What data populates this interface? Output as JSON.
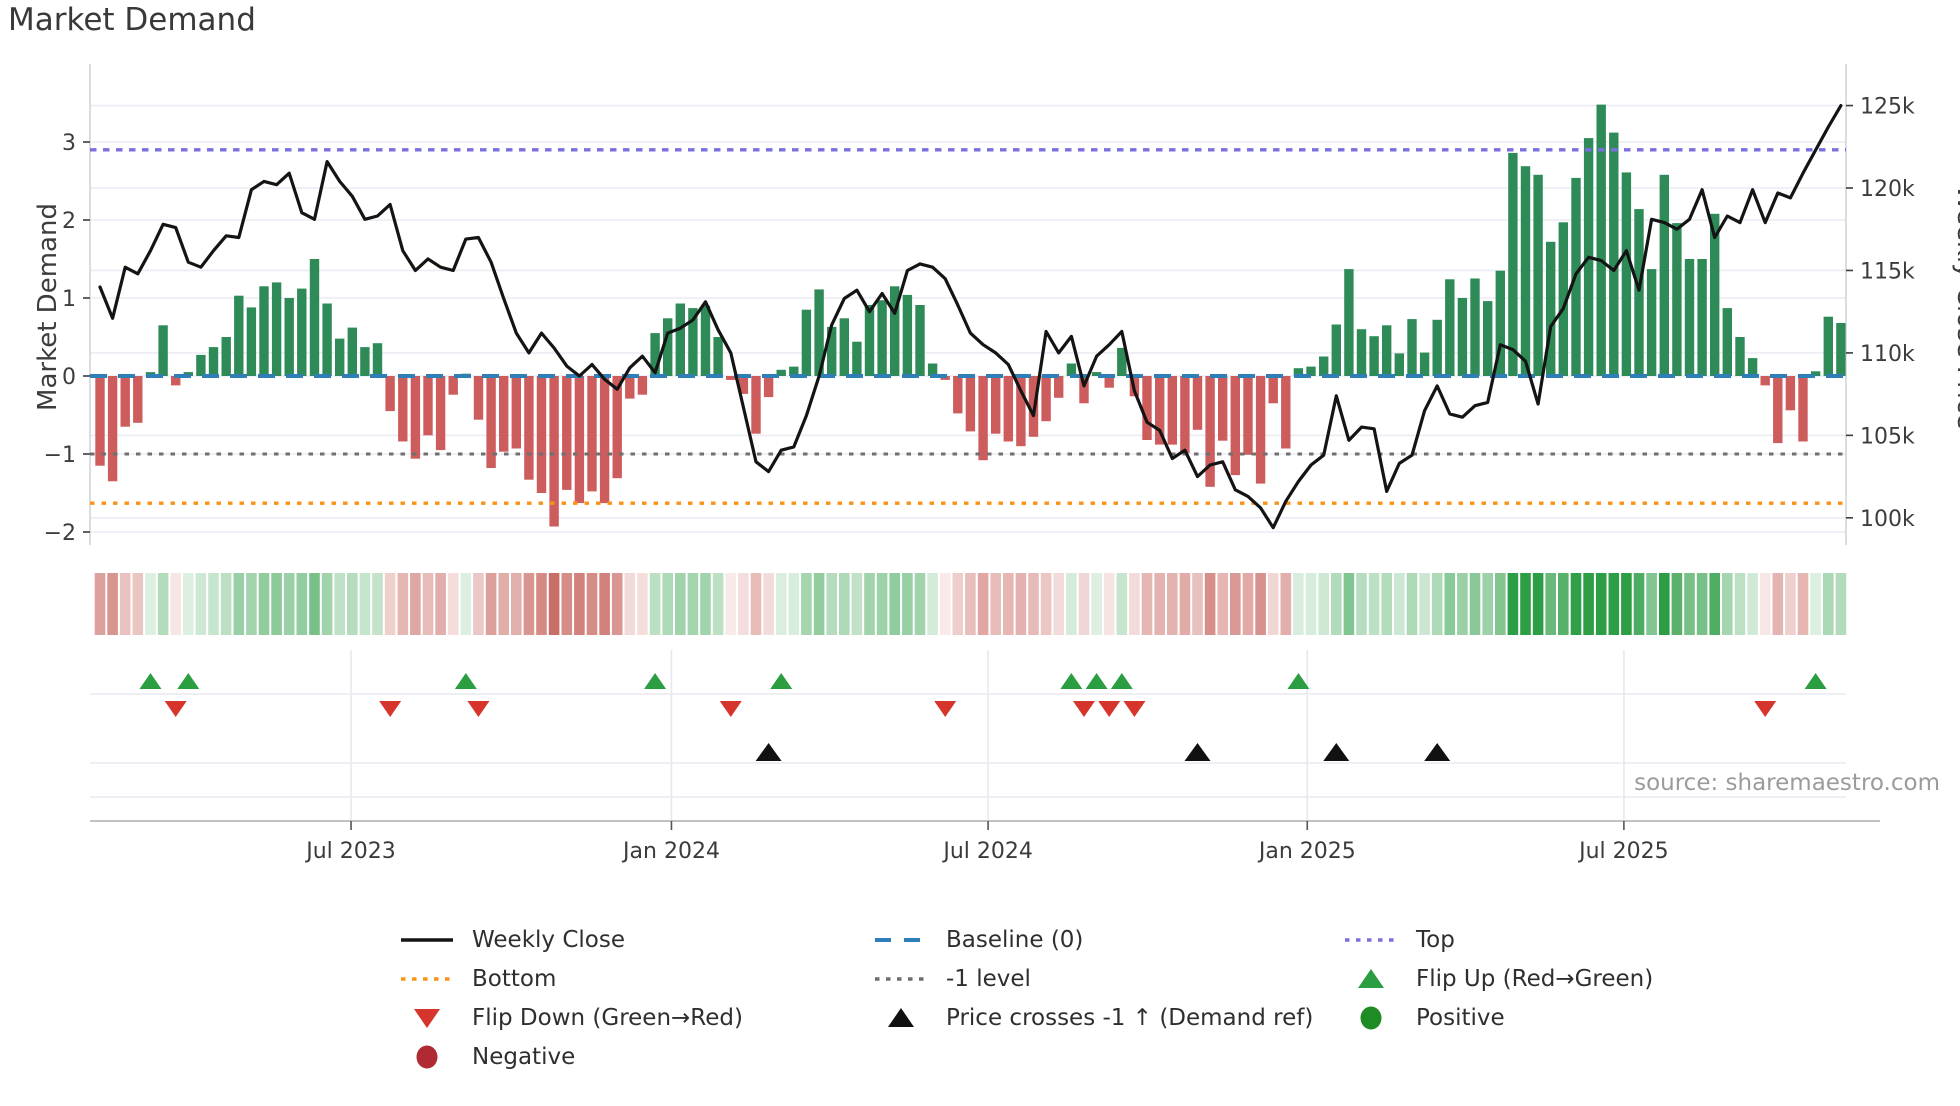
{
  "title": "Market Demand",
  "source": "source: sharemaestro.com",
  "axes": {
    "left_label": "Market Demand",
    "right_label": "Weekly Close Price",
    "left_ticks": [
      "3",
      "2",
      "1",
      "0",
      "−1",
      "−2"
    ],
    "left_tick_values": [
      3,
      2,
      1,
      0,
      -1,
      -2
    ],
    "right_ticks": [
      "125k",
      "120k",
      "115k",
      "110k",
      "105k",
      "100k"
    ],
    "right_tick_values": [
      125,
      120,
      115,
      110,
      105,
      100
    ],
    "x_tick_labels": [
      "Jul 2023",
      "Jan 2024",
      "Jul 2024",
      "Jan 2025",
      "Jul 2025"
    ]
  },
  "colors": {
    "bar_positive": "#2e8b57",
    "bar_negative": "#cd5c5c",
    "price_line": "#141414",
    "baseline": "#2e7eb8",
    "top_line": "#7b6fe0",
    "minus_one_line": "#6f6f6f",
    "bottom_line": "#fa9315",
    "flip_up": "#2b9e41",
    "flip_down": "#d6352c",
    "price_cross": "#111111",
    "positive_dot": "#1f8b24",
    "negative_dot": "#b02a33",
    "heat_green_base": "#2e9e46",
    "heat_red_base": "#c05048"
  },
  "legend": {
    "items": [
      {
        "label": "Weekly Close",
        "kind": "line",
        "color": "#141414"
      },
      {
        "label": "Baseline (0)",
        "kind": "dashes",
        "color": "#2e7eb8"
      },
      {
        "label": "Top",
        "kind": "dots",
        "color": "#7b6fe0"
      },
      {
        "label": "Bottom",
        "kind": "dots",
        "color": "#fa9315"
      },
      {
        "label": "-1 level",
        "kind": "dots",
        "color": "#6f6f6f"
      },
      {
        "label": "Flip Up (Red→Green)",
        "kind": "tri-up",
        "color": "#2b9e41"
      },
      {
        "label": "Flip Down (Green→Red)",
        "kind": "tri-down",
        "color": "#d6352c"
      },
      {
        "label": "Price crosses -1 ↑ (Demand ref)",
        "kind": "tri-up",
        "color": "#111111"
      },
      {
        "label": "Positive",
        "kind": "circle",
        "color": "#1f8b24"
      },
      {
        "label": "Negative",
        "kind": "circle",
        "color": "#b02a33"
      }
    ]
  },
  "chart_data": {
    "type": "bar",
    "title": "Market Demand",
    "x_unit": "week_index",
    "weeks": 139,
    "x_tick_labels": [
      "Jul 2023",
      "Jan 2024",
      "Jul 2024",
      "Jan 2025",
      "Jul 2025"
    ],
    "x_tick_weeks": [
      19.9,
      45.3,
      70.4,
      95.7,
      120.8
    ],
    "left_axis": {
      "label": "Market Demand",
      "range": [
        -2.17,
        4.0
      ],
      "ticks": [
        3,
        2,
        1,
        0,
        -1,
        -2
      ],
      "grid": true
    },
    "right_axis": {
      "label": "Weekly Close Price",
      "range_k": [
        98.3,
        127.5
      ],
      "ticks_k": [
        125,
        120,
        115,
        110,
        105,
        100
      ],
      "grid": true
    },
    "reference_lines": {
      "baseline": 0,
      "top": 2.9,
      "minus_one_level": -1,
      "bottom": -1.63
    },
    "legend_position": "bottom",
    "series": [
      {
        "name": "Market Demand",
        "type": "bar",
        "axis": "left",
        "values": [
          -1.15,
          -1.35,
          -0.65,
          -0.6,
          0.05,
          0.65,
          -0.12,
          0.05,
          0.27,
          0.37,
          0.5,
          1.03,
          0.88,
          1.15,
          1.2,
          1.0,
          1.12,
          1.5,
          0.93,
          0.48,
          0.62,
          0.37,
          0.42,
          -0.45,
          -0.84,
          -1.06,
          -0.76,
          -0.95,
          -0.24,
          0.03,
          -0.56,
          -1.18,
          -0.97,
          -0.93,
          -1.33,
          -1.5,
          -1.93,
          -1.46,
          -1.63,
          -1.48,
          -1.63,
          -1.31,
          -0.29,
          -0.24,
          0.55,
          0.74,
          0.93,
          0.87,
          0.9,
          0.5,
          -0.05,
          -0.23,
          -0.74,
          -0.27,
          0.08,
          0.12,
          0.85,
          1.11,
          0.63,
          0.74,
          0.44,
          0.91,
          0.97,
          1.15,
          1.04,
          0.91,
          0.16,
          -0.05,
          -0.48,
          -0.71,
          -1.08,
          -0.74,
          -0.84,
          -0.9,
          -0.78,
          -0.58,
          -0.28,
          0.16,
          -0.35,
          0.05,
          -0.15,
          0.36,
          -0.26,
          -0.82,
          -0.88,
          -0.88,
          -0.99,
          -0.69,
          -1.42,
          -0.83,
          -1.27,
          -1.01,
          -1.38,
          -0.35,
          -0.93,
          0.1,
          0.12,
          0.25,
          0.66,
          1.37,
          0.6,
          0.51,
          0.65,
          0.29,
          0.73,
          0.3,
          0.72,
          1.24,
          1.0,
          1.25,
          0.96,
          1.35,
          2.86,
          2.69,
          2.58,
          1.72,
          1.97,
          2.54,
          3.05,
          3.48,
          3.12,
          2.61,
          2.14,
          1.37,
          2.58,
          1.96,
          1.5,
          1.5,
          2.08,
          0.87,
          0.5,
          0.23,
          -0.12,
          -0.86,
          -0.44,
          -0.84,
          0.06,
          0.76,
          0.68
        ]
      },
      {
        "name": "Weekly Close",
        "type": "line",
        "axis": "right",
        "values_k": [
          114.0,
          112.1,
          115.2,
          114.8,
          116.2,
          117.8,
          117.6,
          115.5,
          115.2,
          116.2,
          117.1,
          117.0,
          119.9,
          120.4,
          120.2,
          120.9,
          118.5,
          118.1,
          121.6,
          120.4,
          119.5,
          118.1,
          118.3,
          119.0,
          116.2,
          115.0,
          115.7,
          115.2,
          115.0,
          116.9,
          117.0,
          115.5,
          113.3,
          111.2,
          110.0,
          111.2,
          110.3,
          109.2,
          108.6,
          109.3,
          108.4,
          107.8,
          109.1,
          109.8,
          108.8,
          111.2,
          111.5,
          112.0,
          113.1,
          111.4,
          110.0,
          106.7,
          103.4,
          102.8,
          104.1,
          104.3,
          106.2,
          108.6,
          111.7,
          113.3,
          113.8,
          112.5,
          113.6,
          112.4,
          115.0,
          115.4,
          115.2,
          114.5,
          112.9,
          111.2,
          110.5,
          110.0,
          109.3,
          107.7,
          106.2,
          111.3,
          110.0,
          111.0,
          108.0,
          109.8,
          110.5,
          111.3,
          107.7,
          105.8,
          105.3,
          103.6,
          104.1,
          102.5,
          103.2,
          103.4,
          101.7,
          101.3,
          100.6,
          99.4,
          101.0,
          102.2,
          103.2,
          103.8,
          107.4,
          104.7,
          105.5,
          105.4,
          101.6,
          103.3,
          103.8,
          106.5,
          108.0,
          106.3,
          106.1,
          106.8,
          107.0,
          110.5,
          110.2,
          109.5,
          106.9,
          111.6,
          112.7,
          114.8,
          115.8,
          115.6,
          115.0,
          116.2,
          113.8,
          118.1,
          117.9,
          117.5,
          118.1,
          119.9,
          117.0,
          118.3,
          117.9,
          119.9,
          117.9,
          119.7,
          119.4,
          120.9,
          122.3,
          123.7,
          125.0
        ]
      }
    ],
    "heatmap_strip": {
      "source_series": "Market Demand",
      "positive_color": "#2e9e46",
      "negative_color": "#c05048"
    },
    "markers": {
      "flip_up_weeks": [
        4,
        7,
        29,
        44,
        54,
        77,
        79,
        81,
        95,
        136
      ],
      "flip_down_weeks": [
        6,
        23,
        30,
        50,
        67,
        78,
        80,
        82,
        132
      ],
      "price_cross_weeks": [
        53,
        87,
        98,
        106
      ]
    }
  }
}
